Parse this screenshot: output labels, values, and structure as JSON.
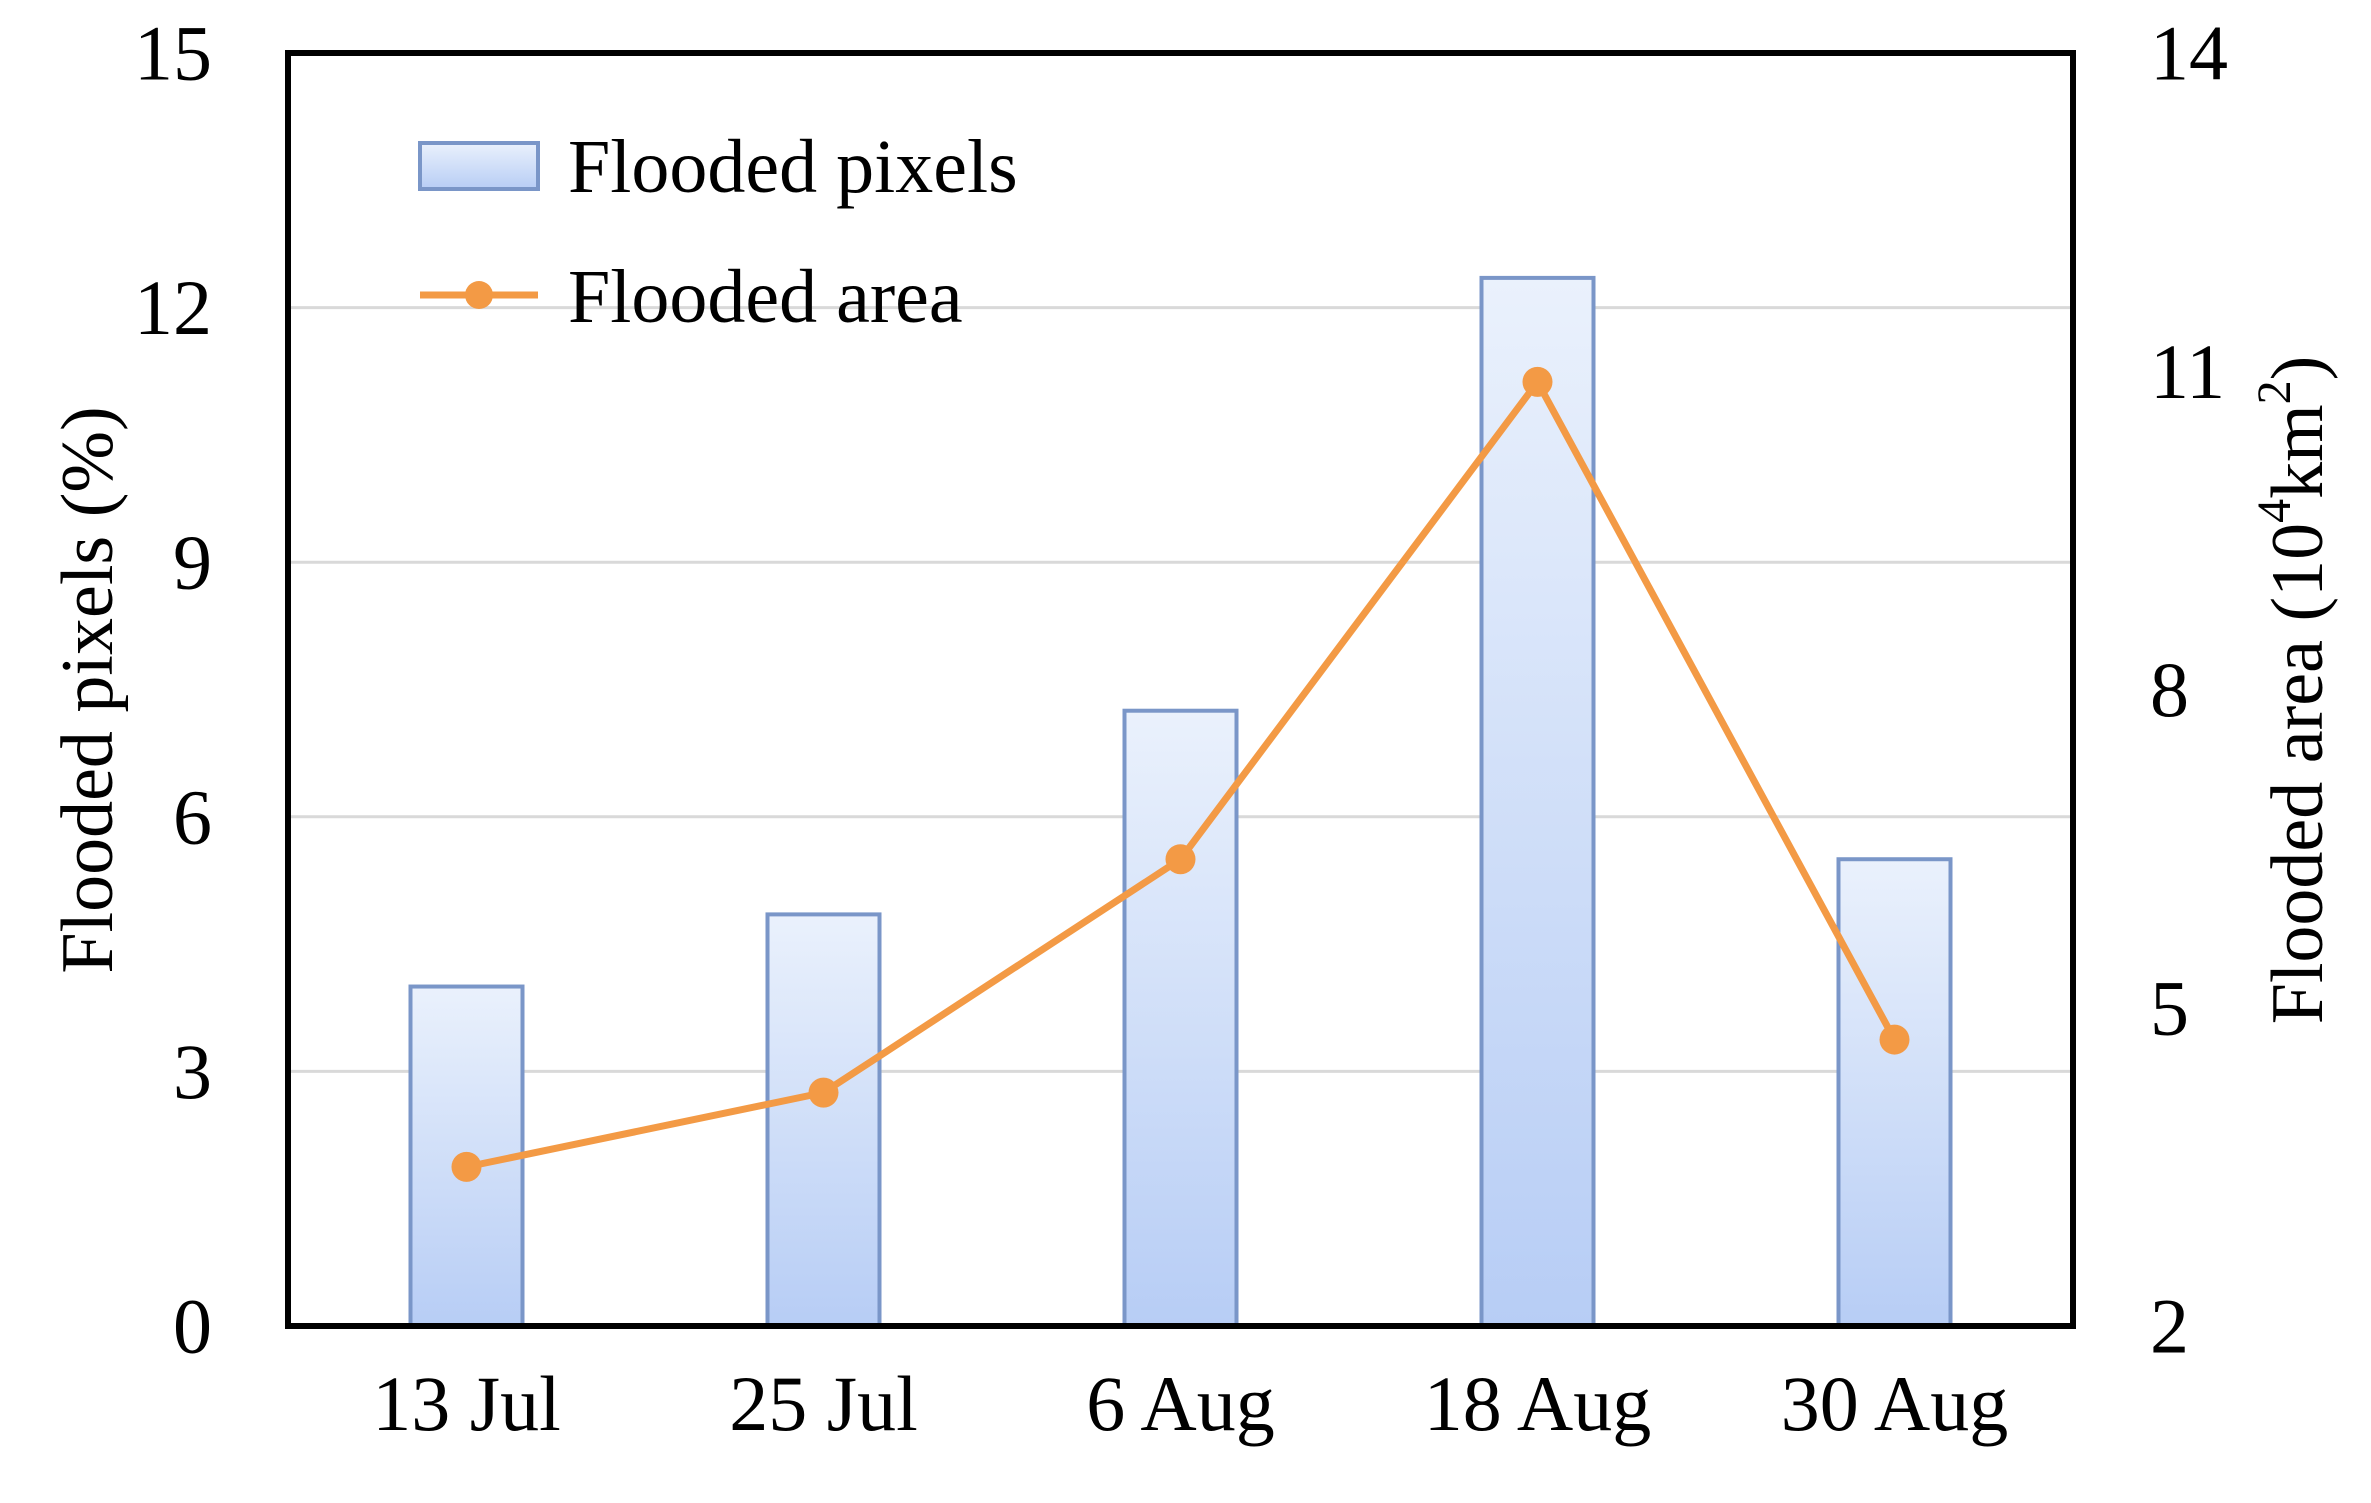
{
  "chart_data": {
    "type": "bar+line",
    "title": "",
    "categories": [
      "13 Jul",
      "25 Jul",
      "6 Aug",
      "18 Aug",
      "30 Aug"
    ],
    "series": [
      {
        "name": "Flooded pixels",
        "type": "bar",
        "axis": "left",
        "values": [
          4.0,
          4.85,
          7.25,
          12.35,
          5.5
        ]
      },
      {
        "name": "Flooded area",
        "type": "line",
        "axis": "right",
        "values": [
          3.5,
          4.2,
          6.4,
          10.9,
          4.7
        ]
      }
    ],
    "y_left": {
      "label": "Flooded pixels (%)",
      "range": [
        0,
        15
      ],
      "ticks": [
        "0",
        "3",
        "6",
        "9",
        "12",
        "15"
      ]
    },
    "y_right": {
      "label_main": "Flooded area (10",
      "label_sup1": "4",
      "label_mid": "km",
      "label_sup2": "2",
      "label_end": ")",
      "range": [
        2,
        14
      ],
      "ticks": [
        "2",
        "5",
        "8",
        "11",
        "14"
      ]
    },
    "legend": {
      "position": "top-left",
      "entries": [
        "Flooded pixels",
        "Flooded area"
      ]
    },
    "grid": true,
    "colors": {
      "bar_top": "#eaf1fc",
      "bar_bottom": "#b7cdf5",
      "bar_edge": "#7a96c8",
      "line": "#f39a45"
    }
  }
}
